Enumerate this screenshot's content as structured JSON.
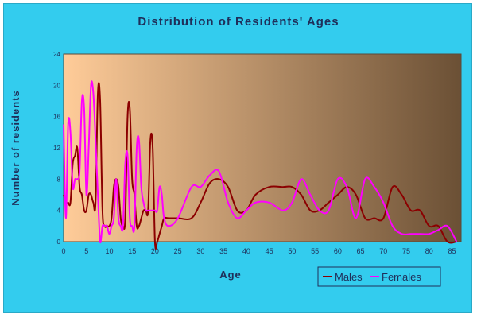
{
  "colors": {
    "background": "#33ccee",
    "plot_gradient_start": "#ffcc99",
    "plot_gradient_end": "#6b5035",
    "males": "#8b0000",
    "females": "#ff00ff",
    "text": "#1f2f5a"
  },
  "chart_data": {
    "type": "line",
    "title": "Distribution of Residents' Ages",
    "xlabel": "Age",
    "ylabel": "Number of residents",
    "xlim": [
      0,
      87
    ],
    "ylim": [
      0,
      24
    ],
    "xticks": [
      0,
      5,
      10,
      15,
      20,
      25,
      30,
      35,
      40,
      45,
      50,
      55,
      60,
      65,
      70,
      75,
      80,
      85
    ],
    "yticks": [
      0,
      4,
      8,
      12,
      16,
      20,
      24
    ],
    "grid": false,
    "legend_position": "bottom-right",
    "series": [
      {
        "name": "Males",
        "color": "#8b0000",
        "x": [
          0,
          0.5,
          1,
          1.5,
          2,
          2.5,
          3,
          3.5,
          4,
          4.5,
          5,
          5.5,
          6,
          6.5,
          7,
          7.5,
          8,
          8.5,
          9,
          9.5,
          10,
          10.5,
          11,
          11.5,
          12,
          12.5,
          13,
          13.5,
          14,
          14.5,
          15,
          15.5,
          16,
          16.5,
          17,
          17.5,
          18,
          18.5,
          19,
          19.5,
          20,
          20.5,
          21,
          21.5,
          22,
          23,
          25,
          28,
          30,
          32,
          34,
          36,
          38,
          40,
          42,
          45,
          48,
          50,
          52,
          54,
          56,
          58,
          60,
          62,
          64,
          66,
          68,
          70,
          72,
          74,
          76,
          78,
          80,
          82,
          84,
          86
        ],
        "values": [
          6,
          5,
          5,
          5,
          10,
          11,
          12,
          7,
          6,
          4,
          4,
          6,
          6,
          5,
          5,
          19,
          18,
          4,
          2,
          2,
          2,
          3,
          7,
          8,
          7,
          3,
          2,
          3,
          16,
          17,
          8,
          6,
          2,
          2,
          3,
          4,
          4,
          4,
          13,
          12,
          0,
          0,
          1,
          2,
          3,
          3,
          3,
          3,
          5,
          7.5,
          8,
          7,
          4,
          4,
          6,
          7,
          7,
          7,
          6,
          4,
          4,
          5,
          6,
          7,
          6,
          3,
          3,
          3,
          7,
          6,
          4,
          4,
          2,
          2,
          0,
          0
        ]
      },
      {
        "name": "Females",
        "color": "#ff00ff",
        "x": [
          0,
          0.5,
          1,
          1.5,
          2,
          2.5,
          3,
          3.5,
          4,
          4.5,
          5,
          5.5,
          6,
          6.5,
          7,
          7.5,
          8,
          8.5,
          9,
          9.5,
          10,
          10.5,
          11,
          11.5,
          12,
          12.5,
          13,
          13.5,
          14,
          14.5,
          15,
          15.5,
          16,
          16.5,
          17,
          17.5,
          18,
          18.5,
          19,
          19.5,
          20,
          20.5,
          21,
          21.5,
          22,
          23,
          25,
          28,
          30,
          32,
          34,
          36,
          38,
          40,
          42,
          45,
          48,
          50,
          52,
          54,
          56,
          58,
          60,
          62,
          64,
          66,
          68,
          70,
          72,
          74,
          76,
          78,
          80,
          82,
          84,
          86
        ],
        "values": [
          15,
          3,
          15,
          14,
          7,
          8,
          8,
          9,
          18,
          17,
          6,
          12,
          20,
          19,
          13,
          6,
          0,
          2,
          2,
          2,
          1,
          2,
          3,
          8,
          3,
          2,
          2,
          10,
          11,
          3,
          2,
          2,
          12,
          13,
          7,
          5,
          4,
          4,
          4,
          4,
          4,
          4,
          7,
          6,
          3,
          2,
          3,
          7,
          7,
          8.5,
          9,
          5,
          3,
          4,
          5,
          5,
          4,
          5,
          8,
          6,
          4,
          4,
          8,
          7,
          3,
          8,
          7,
          5,
          2,
          1,
          1,
          1,
          1,
          1.5,
          2,
          0
        ]
      }
    ]
  }
}
